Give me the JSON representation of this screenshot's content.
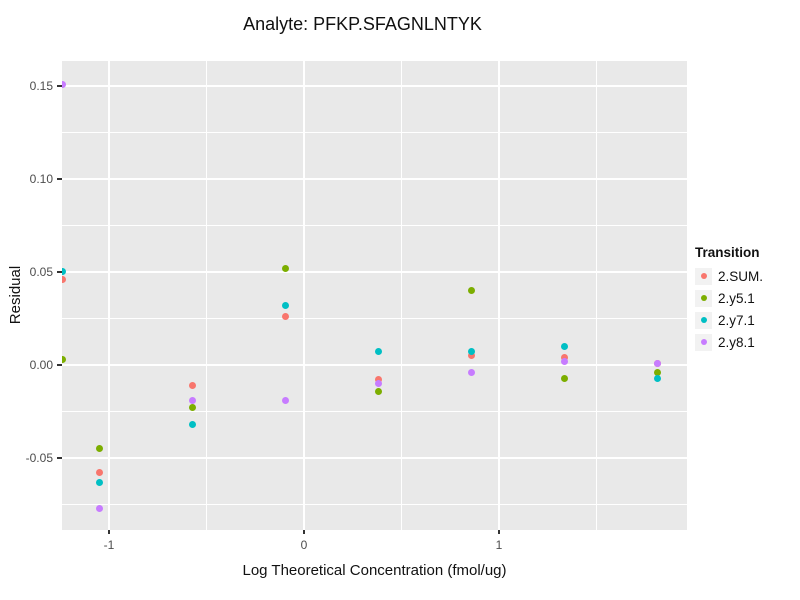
{
  "chart_data": {
    "type": "scatter",
    "title": "Analyte: PFKP.SFAGNLNTYK",
    "xlabel": "Log Theoretical Concentration (fmol/ug)",
    "ylabel": "Residual",
    "legend_title": "Transition",
    "legend_position": "right",
    "grid": true,
    "panel_bg": "#E9E9E9",
    "grid_color": "#FFFFFF",
    "axis_text_color": "#4D4D4D",
    "xlim": [
      -1.241,
      1.964
    ],
    "ylim": [
      -0.0887,
      0.1634
    ],
    "x_ticks": {
      "values": [
        -1,
        0,
        1
      ],
      "labels": [
        "-1",
        "0",
        "1"
      ]
    },
    "y_ticks": {
      "values": [
        0.15,
        0.1,
        0.05,
        0.0,
        -0.05
      ],
      "labels": [
        "0.15",
        "0.10",
        "0.05",
        "0.00",
        "-0.05"
      ]
    },
    "x_minor": [
      -0.5,
      0.5,
      1.5
    ],
    "y_minor": [
      0.125,
      0.075,
      0.025,
      -0.025,
      -0.075
    ],
    "x": [
      -1.241,
      -1.047,
      -0.57,
      -0.093,
      0.384,
      0.861,
      1.338,
      1.815
    ],
    "series": [
      {
        "name": "2.SUM.",
        "color": "#F8766D",
        "values": [
          0.046,
          -0.058,
          -0.011,
          0.026,
          -0.008,
          0.005,
          0.004,
          0.001
        ]
      },
      {
        "name": "2.y5.1",
        "color": "#7CAE00",
        "values": [
          0.003,
          -0.045,
          -0.023,
          0.052,
          -0.014,
          0.04,
          -0.007,
          -0.004
        ]
      },
      {
        "name": "2.y7.1",
        "color": "#00BFC4",
        "values": [
          0.05,
          -0.063,
          -0.032,
          0.032,
          0.0075,
          0.0075,
          0.01,
          -0.0075
        ]
      },
      {
        "name": "2.y8.1",
        "color": "#C77CFF",
        "values": [
          0.1505,
          -0.077,
          -0.019,
          -0.019,
          -0.01,
          -0.004,
          0.002,
          0.001
        ]
      }
    ]
  }
}
